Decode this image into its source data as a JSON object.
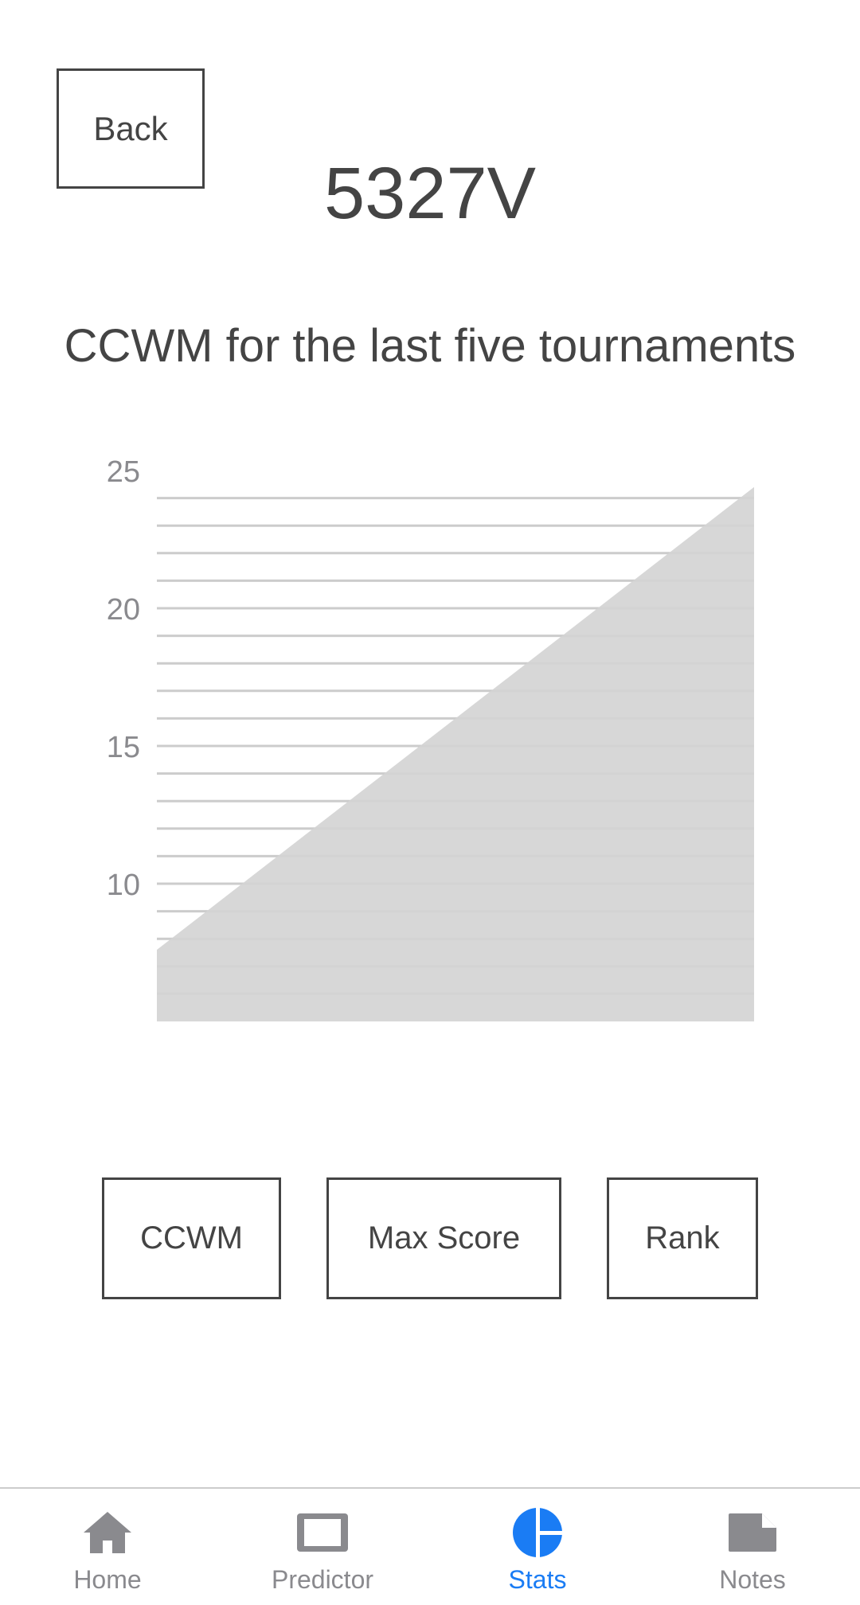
{
  "header": {
    "back_label": "Back",
    "team_number": "5327V"
  },
  "chart_heading": "CCWM for the last five tournaments",
  "chart_data": {
    "type": "area",
    "title": "",
    "xlabel": "",
    "ylabel": "",
    "x": [
      1,
      2
    ],
    "series": [
      {
        "values": [
          7.6,
          24.4
        ]
      }
    ],
    "ylim": [
      5,
      25
    ],
    "yticks": [
      10,
      15,
      20,
      25
    ],
    "grid": true,
    "fill_color": "#d4d4d4",
    "grid_color": "#cccccc"
  },
  "mode_buttons": {
    "ccwm": "CCWM",
    "max_score": "Max Score",
    "rank": "Rank"
  },
  "tabs": [
    {
      "label": "Home",
      "icon": "home-icon",
      "active": false
    },
    {
      "label": "Predictor",
      "icon": "predictor-icon",
      "active": false
    },
    {
      "label": "Stats",
      "icon": "stats-icon",
      "active": true
    },
    {
      "label": "Notes",
      "icon": "notes-icon",
      "active": false
    }
  ],
  "colors": {
    "active_tab": "#1a7cf4",
    "inactive_tab": "#8a8a8e",
    "text": "#444444"
  }
}
